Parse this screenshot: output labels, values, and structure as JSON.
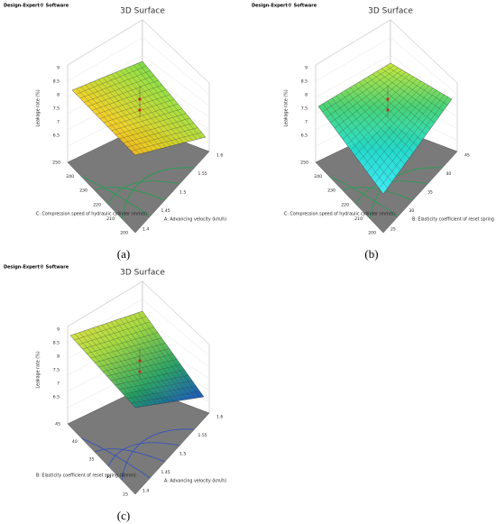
{
  "panels": [
    {
      "software": "Design-Expert® Software",
      "title": "3D Surface",
      "z_label": "Leakage rate (%)",
      "z_ticks": [
        "9",
        "8.5",
        "8",
        "7.5",
        "7",
        "6.5"
      ],
      "left_axis_label": "C: Compression speed of hydraulic cylinder (mm/s)",
      "left_ticks": [
        "250",
        "240",
        "230",
        "220",
        "210",
        "200"
      ],
      "right_axis_label": "A: Advancing velocity (km/h)",
      "right_ticks": [
        "1.4",
        "1.45",
        "1.5",
        "1.55",
        "1.6"
      ],
      "caption": "(a)"
    },
    {
      "software": "Design-Expert® Software",
      "title": "3D Surface",
      "z_label": "Leakage rate (%)",
      "z_ticks": [
        "9",
        "8.5",
        "8",
        "7.5",
        "7",
        "6.5"
      ],
      "left_axis_label": "C: Compression speed of hydraulic cylinder (mm/s)",
      "left_ticks": [
        "250",
        "240",
        "230",
        "220",
        "210",
        "200"
      ],
      "right_axis_label": "B: Elasticity coefficient of reset spring (N/mm)",
      "right_ticks": [
        "25",
        "30",
        "35",
        "40",
        "45"
      ],
      "caption": "(b)"
    },
    {
      "software": "Design-Expert® Software",
      "title": "3D Surface",
      "z_label": "Leakage rate (%)",
      "z_ticks": [
        "9",
        "8.5",
        "8",
        "7.5",
        "7",
        "6.5"
      ],
      "left_axis_label": "B: Elasticity coefficient of reset spring (N/mm)",
      "left_ticks": [
        "45",
        "40",
        "35",
        "30",
        "25"
      ],
      "right_axis_label": "A: Advancing velocity (km/h)",
      "right_ticks": [
        "1.4",
        "1.45",
        "1.5",
        "1.55",
        "1.6"
      ],
      "caption": "(c)"
    }
  ]
}
